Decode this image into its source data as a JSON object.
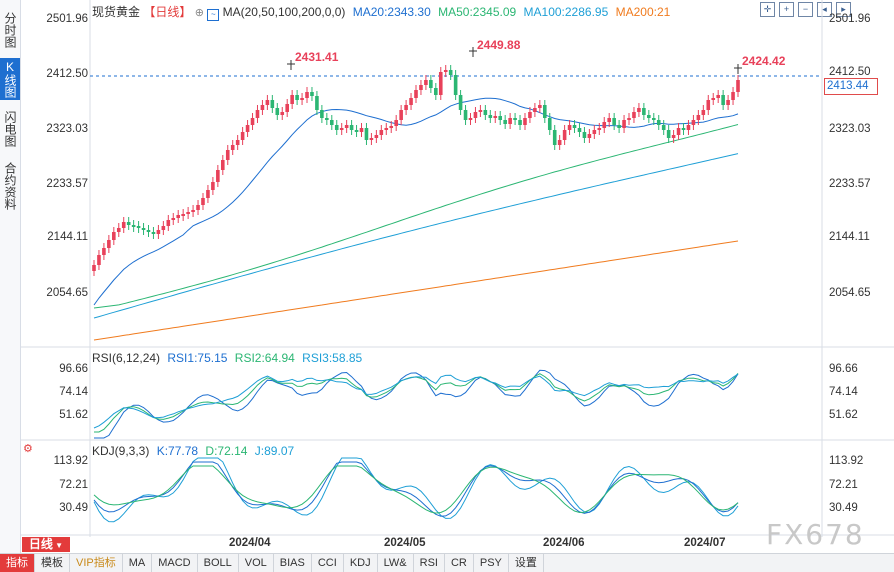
{
  "side_tabs": [
    {
      "label": "分时图",
      "active": false
    },
    {
      "label": "K线图",
      "active": true
    },
    {
      "label": "闪电图",
      "active": false
    },
    {
      "label": "合约资料",
      "active": false
    }
  ],
  "header": {
    "instrument": "现货黄金",
    "period": "【日线】",
    "ma_label": "MA(20,50,100,200,0,0)",
    "ma20": "MA20:2343.30",
    "ma50": "MA50:2345.09",
    "ma100": "MA100:2286.95",
    "ma200": "MA200:21"
  },
  "price_axis": {
    "labels": [
      "2501.96",
      "2412.50",
      "2323.03",
      "2233.57",
      "2144.11",
      "2054.65"
    ],
    "current_price": "2413.44"
  },
  "annotations": {
    "high1": "2431.41",
    "high2": "2449.88",
    "high3": "2424.42"
  },
  "rsi": {
    "title": "RSI(6,12,24)",
    "rsi1": "RSI1:75.15",
    "rsi2": "RSI2:64.94",
    "rsi3": "RSI3:58.85",
    "axis": [
      "96.66",
      "74.14",
      "51.62"
    ]
  },
  "kdj": {
    "title": "KDJ(9,3,3)",
    "k": "K:77.78",
    "d": "D:72.14",
    "j": "J:89.07",
    "axis": [
      "113.92",
      "72.21",
      "30.49"
    ]
  },
  "date_axis": [
    "2024/04",
    "2024/05",
    "2024/06",
    "2024/07"
  ],
  "period_button": "日线",
  "toolbar": [
    "指标",
    "模板",
    "VIP指标",
    "MA",
    "MACD",
    "BOLL",
    "VOL",
    "BIAS",
    "CCI",
    "KDJ",
    "LW&",
    "RSI",
    "CR",
    "PSY",
    "设置"
  ],
  "watermark": "FX678",
  "colors": {
    "up": "#e8415a",
    "down": "#2bb673",
    "ma20": "#1e6fd0",
    "ma50": "#2bb673",
    "ma100": "#1e9fd6",
    "ma200": "#f07b1e"
  }
}
